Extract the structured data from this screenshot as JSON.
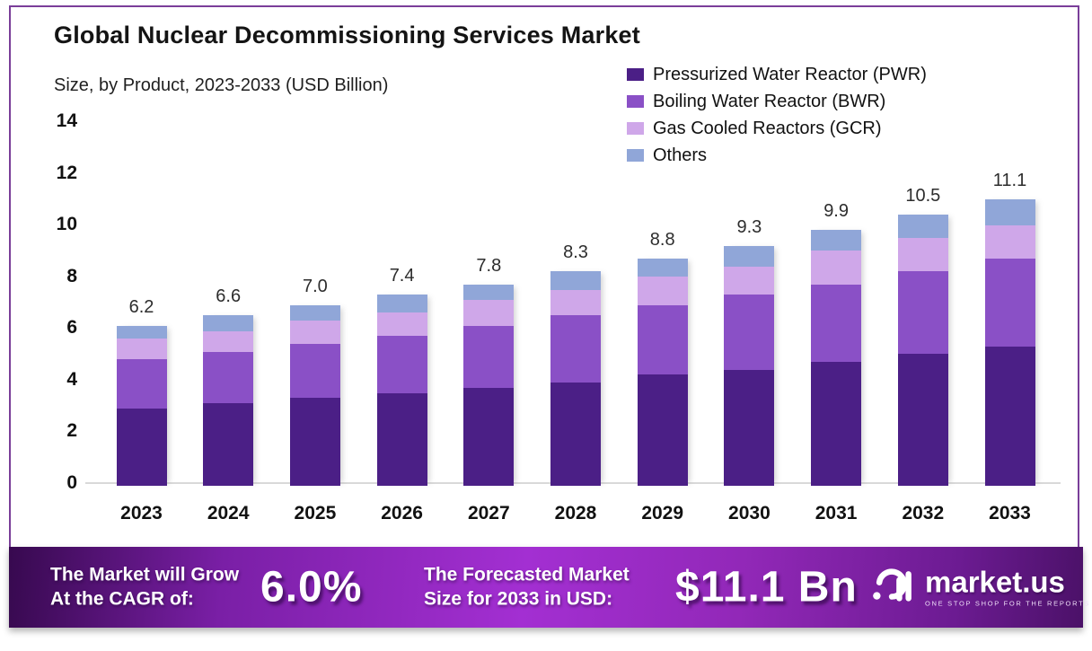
{
  "header": {
    "title": "Global Nuclear Decommissioning Services Market",
    "subtitle": "Size, by Product, 2023-2033 (USD Billion)"
  },
  "legend": {
    "position": "top-right",
    "items": [
      {
        "label": "Pressurized Water Reactor (PWR)",
        "color": "#4b1f86"
      },
      {
        "label": "Boiling Water Reactor (BWR)",
        "color": "#8a50c6"
      },
      {
        "label": "Gas Cooled Reactors (GCR)",
        "color": "#cfa7e9"
      },
      {
        "label": "Others",
        "color": "#90a6d8"
      }
    ]
  },
  "chart_data": {
    "type": "bar",
    "stacked": true,
    "title": "Global Nuclear Decommissioning Services Market",
    "subtitle": "Size, by Product, 2023-2033 (USD Billion)",
    "xlabel": "",
    "ylabel": "USD Billion",
    "ylim": [
      0,
      14
    ],
    "yticks": [
      0,
      2,
      4,
      6,
      8,
      10,
      12,
      14
    ],
    "grid": false,
    "categories": [
      "2023",
      "2024",
      "2025",
      "2026",
      "2027",
      "2028",
      "2029",
      "2030",
      "2031",
      "2032",
      "2033"
    ],
    "series": [
      {
        "name": "Pressurized Water Reactor (PWR)",
        "color": "#4b1f86",
        "values": [
          3.0,
          3.2,
          3.4,
          3.6,
          3.8,
          4.0,
          4.3,
          4.5,
          4.8,
          5.1,
          5.4
        ]
      },
      {
        "name": "Boiling Water Reactor (BWR)",
        "color": "#8a50c6",
        "values": [
          1.9,
          2.0,
          2.1,
          2.2,
          2.4,
          2.6,
          2.7,
          2.9,
          3.0,
          3.2,
          3.4
        ]
      },
      {
        "name": "Gas Cooled Reactors (GCR)",
        "color": "#cfa7e9",
        "values": [
          0.8,
          0.8,
          0.9,
          0.9,
          1.0,
          1.0,
          1.1,
          1.1,
          1.3,
          1.3,
          1.3
        ]
      },
      {
        "name": "Others",
        "color": "#90a6d8",
        "values": [
          0.5,
          0.6,
          0.6,
          0.7,
          0.6,
          0.7,
          0.7,
          0.8,
          0.8,
          0.9,
          1.0
        ]
      }
    ],
    "totals": [
      6.2,
      6.6,
      7.0,
      7.4,
      7.8,
      8.3,
      8.8,
      9.3,
      9.9,
      10.5,
      11.1
    ]
  },
  "banner": {
    "cagr_label_line1": "The Market will Grow",
    "cagr_label_line2": "At the CAGR of:",
    "cagr_value": "6.0%",
    "forecast_label_line1": "The Forecasted Market",
    "forecast_label_line2": "Size for 2033 in USD:",
    "forecast_value": "$11.1 Bn",
    "logo_name": "market.us",
    "logo_tagline": "ONE STOP SHOP FOR THE REPORTS"
  },
  "colors": {
    "frame_border": "#7a3e99",
    "axis_line": "#d9d9d9",
    "banner_gradient_start": "#37094f",
    "banner_gradient_mid": "#a32fd2",
    "banner_gradient_end": "#4b1168"
  }
}
